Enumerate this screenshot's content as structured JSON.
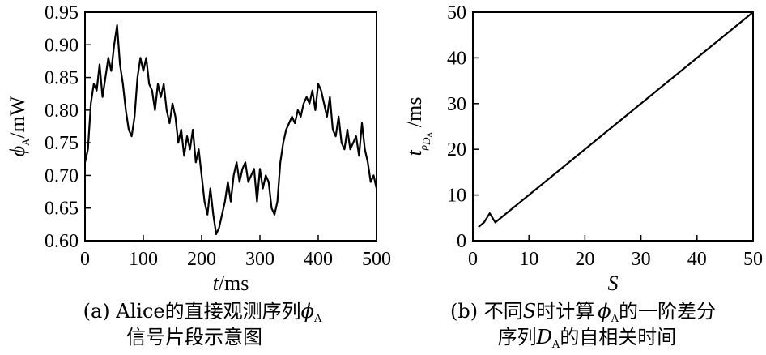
{
  "chart_data": [
    {
      "type": "line",
      "caption": [
        "(a) Alice的直接观测序列",
        "信号片段示意图"
      ],
      "caption_symbol": "ϕ",
      "caption_symbol_sub": "A",
      "xlabel_var": "t",
      "xlabel_unit": "/ms",
      "ylabel_symbol": "ϕ",
      "ylabel_sub": "A",
      "ylabel_unit": "/mW",
      "xlim": [
        0,
        500
      ],
      "ylim": [
        0.6,
        0.95
      ],
      "xticks": [
        "0",
        "100",
        "200",
        "300",
        "400",
        "500"
      ],
      "yticks": [
        "0.60",
        "0.65",
        "0.70",
        "0.75",
        "0.80",
        "0.85",
        "0.90",
        "0.95"
      ],
      "series": [
        {
          "x": [
            0,
            5,
            10,
            15,
            20,
            25,
            30,
            35,
            40,
            45,
            50,
            55,
            60,
            65,
            70,
            75,
            80,
            85,
            90,
            95,
            100,
            105,
            110,
            115,
            120,
            125,
            130,
            135,
            140,
            145,
            150,
            155,
            160,
            165,
            170,
            175,
            180,
            185,
            190,
            195,
            200,
            205,
            210,
            215,
            220,
            225,
            230,
            235,
            240,
            245,
            250,
            255,
            260,
            265,
            270,
            275,
            280,
            285,
            290,
            295,
            300,
            305,
            310,
            315,
            320,
            325,
            330,
            335,
            340,
            345,
            350,
            355,
            360,
            365,
            370,
            375,
            380,
            385,
            390,
            395,
            400,
            405,
            410,
            415,
            420,
            425,
            430,
            435,
            440,
            445,
            450,
            455,
            460,
            465,
            470,
            475,
            480,
            485,
            490,
            495,
            500
          ],
          "y": [
            0.72,
            0.74,
            0.81,
            0.84,
            0.83,
            0.87,
            0.82,
            0.85,
            0.88,
            0.86,
            0.9,
            0.93,
            0.87,
            0.84,
            0.8,
            0.77,
            0.76,
            0.79,
            0.85,
            0.88,
            0.86,
            0.88,
            0.84,
            0.83,
            0.8,
            0.84,
            0.82,
            0.84,
            0.8,
            0.78,
            0.81,
            0.79,
            0.75,
            0.77,
            0.73,
            0.76,
            0.74,
            0.77,
            0.72,
            0.74,
            0.7,
            0.66,
            0.64,
            0.68,
            0.64,
            0.61,
            0.62,
            0.64,
            0.66,
            0.69,
            0.66,
            0.7,
            0.72,
            0.69,
            0.71,
            0.72,
            0.69,
            0.7,
            0.71,
            0.66,
            0.71,
            0.68,
            0.7,
            0.69,
            0.65,
            0.64,
            0.66,
            0.72,
            0.75,
            0.77,
            0.78,
            0.79,
            0.78,
            0.8,
            0.79,
            0.81,
            0.82,
            0.81,
            0.83,
            0.8,
            0.84,
            0.83,
            0.81,
            0.79,
            0.82,
            0.77,
            0.76,
            0.79,
            0.75,
            0.74,
            0.77,
            0.74,
            0.75,
            0.76,
            0.73,
            0.78,
            0.74,
            0.72,
            0.69,
            0.7,
            0.68
          ]
        }
      ]
    },
    {
      "type": "line",
      "caption": [
        "(b) 不同",
        "时计算",
        "的一阶差分",
        "序列",
        "的自相关时间"
      ],
      "caption_S": "S",
      "caption_phi": "ϕ",
      "caption_phi_sub": "A",
      "caption_D": "D",
      "caption_D_sub": "A",
      "xlabel": "S",
      "ylabel_symbol": "t",
      "ylabel_sub": "ρ",
      "ylabel_subsub": "D",
      "ylabel_subsubsub": "A",
      "ylabel_unit": "/ms",
      "xlim": [
        0,
        50
      ],
      "ylim": [
        0,
        50
      ],
      "xticks": [
        "0",
        "10",
        "20",
        "30",
        "40",
        "50"
      ],
      "yticks": [
        "0",
        "10",
        "20",
        "30",
        "40",
        "50"
      ],
      "series": [
        {
          "x": [
            1,
            2,
            3,
            4,
            50
          ],
          "y": [
            3,
            4,
            6,
            4,
            50
          ]
        }
      ]
    }
  ]
}
